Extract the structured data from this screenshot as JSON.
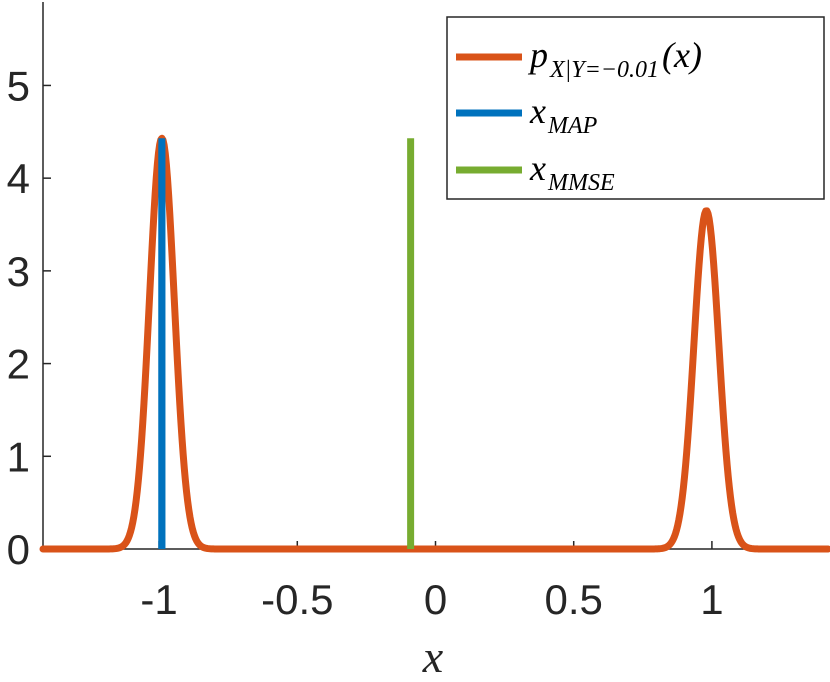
{
  "chart_data": {
    "type": "line",
    "xlabel": "x",
    "ylabel": "",
    "title": "",
    "xlim": [
      -1.42,
      1.42
    ],
    "ylim": [
      0,
      5.9
    ],
    "xticks": [
      -1,
      -0.5,
      0,
      0.5,
      1
    ],
    "xtick_labels": [
      "-1",
      "-0.5",
      "0",
      "0.5",
      "1"
    ],
    "yticks": [
      0,
      1,
      2,
      3,
      4,
      5
    ],
    "ytick_labels": [
      "0",
      "1",
      "2",
      "3",
      "4",
      "5"
    ],
    "grid": false,
    "legend_position": "top-right",
    "series": [
      {
        "name": "p_{X|Y=-0.01}(x)",
        "kind": "density",
        "color": "#D95319",
        "peaks": [
          {
            "center": -0.99,
            "height": 4.43,
            "sigma": 0.045
          },
          {
            "center": 0.98,
            "height": 3.65,
            "sigma": 0.045
          }
        ]
      },
      {
        "name": "x_MAP",
        "kind": "vertical_line",
        "color": "#0072BD",
        "x": -0.99,
        "y_top": 4.43
      },
      {
        "name": "x_MMSE",
        "kind": "vertical_line",
        "color": "#77AC30",
        "x": -0.09,
        "y_top": 4.43
      }
    ],
    "legend": [
      {
        "main": "p",
        "sub": "X|Y=−0.01",
        "suffix": "(x)",
        "color": "#D95319"
      },
      {
        "main": "x",
        "sub": "MAP",
        "suffix": "",
        "color": "#0072BD"
      },
      {
        "main": "x",
        "sub": "MMSE",
        "suffix": "",
        "color": "#77AC30"
      }
    ]
  }
}
